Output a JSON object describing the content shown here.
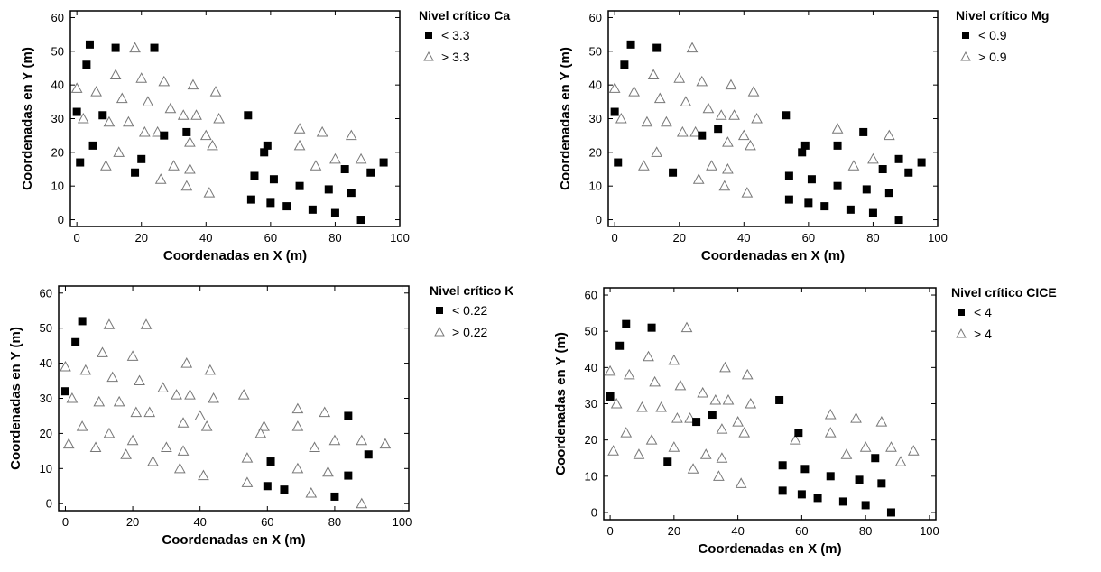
{
  "chart_data": [
    {
      "type": "scatter",
      "legend_title": "Nivel crítico Ca",
      "legend_position": "right",
      "xlabel": "Coordenadas en X (m)",
      "ylabel": "Coordenadas en Y (m)",
      "xlim": [
        -2,
        100
      ],
      "ylim": [
        -2,
        62
      ],
      "xticks": [
        "0",
        "20",
        "40",
        "60",
        "80",
        "100"
      ],
      "yticks": [
        "0",
        "10",
        "20",
        "30",
        "40",
        "50",
        "60"
      ],
      "grid": false,
      "series": [
        {
          "name": "< 3.3",
          "marker": "square",
          "color": "#000000",
          "points": [
            [
              4,
              52
            ],
            [
              12,
              51
            ],
            [
              24,
              51
            ],
            [
              3,
              46
            ],
            [
              0,
              32
            ],
            [
              8,
              31
            ],
            [
              53,
              31
            ],
            [
              34,
              26
            ],
            [
              27,
              25
            ],
            [
              59,
              22
            ],
            [
              58,
              20
            ],
            [
              5,
              22
            ],
            [
              1,
              17
            ],
            [
              20,
              18
            ],
            [
              18,
              14
            ],
            [
              95,
              17
            ],
            [
              83,
              15
            ],
            [
              91,
              14
            ],
            [
              55,
              13
            ],
            [
              61,
              12
            ],
            [
              69,
              10
            ],
            [
              78,
              9
            ],
            [
              85,
              8
            ],
            [
              54,
              6
            ],
            [
              60,
              5
            ],
            [
              65,
              4
            ],
            [
              73,
              3
            ],
            [
              80,
              2
            ],
            [
              88,
              0
            ]
          ]
        },
        {
          "name": "> 3.3",
          "marker": "triangle",
          "color": "#ffffff",
          "points": [
            [
              18,
              51
            ],
            [
              12,
              43
            ],
            [
              20,
              42
            ],
            [
              0,
              39
            ],
            [
              6,
              38
            ],
            [
              14,
              36
            ],
            [
              22,
              35
            ],
            [
              27,
              41
            ],
            [
              36,
              40
            ],
            [
              43,
              38
            ],
            [
              2,
              30
            ],
            [
              10,
              29
            ],
            [
              16,
              29
            ],
            [
              21,
              26
            ],
            [
              25,
              26
            ],
            [
              29,
              33
            ],
            [
              33,
              31
            ],
            [
              37,
              31
            ],
            [
              44,
              30
            ],
            [
              40,
              25
            ],
            [
              35,
              23
            ],
            [
              42,
              22
            ],
            [
              9,
              16
            ],
            [
              13,
              20
            ],
            [
              30,
              16
            ],
            [
              35,
              15
            ],
            [
              26,
              12
            ],
            [
              34,
              10
            ],
            [
              41,
              8
            ],
            [
              69,
              27
            ],
            [
              76,
              26
            ],
            [
              85,
              25
            ],
            [
              69,
              22
            ],
            [
              74,
              16
            ],
            [
              80,
              18
            ],
            [
              88,
              18
            ]
          ]
        }
      ]
    },
    {
      "type": "scatter",
      "legend_title": "Nivel crítico Mg",
      "legend_position": "right",
      "xlabel": "Coordenadas en X (m)",
      "ylabel": "Coordenadas en Y (m)",
      "xlim": [
        -2,
        100
      ],
      "ylim": [
        -2,
        62
      ],
      "xticks": [
        "0",
        "20",
        "40",
        "60",
        "80",
        "100"
      ],
      "yticks": [
        "0",
        "10",
        "20",
        "30",
        "40",
        "50",
        "60"
      ],
      "grid": false,
      "series": [
        {
          "name": "< 0.9",
          "marker": "square",
          "color": "#000000",
          "points": [
            [
              5,
              52
            ],
            [
              13,
              51
            ],
            [
              3,
              46
            ],
            [
              0,
              32
            ],
            [
              53,
              31
            ],
            [
              32,
              27
            ],
            [
              27,
              25
            ],
            [
              77,
              26
            ],
            [
              69,
              22
            ],
            [
              59,
              22
            ],
            [
              58,
              20
            ],
            [
              1,
              17
            ],
            [
              18,
              14
            ],
            [
              95,
              17
            ],
            [
              88,
              18
            ],
            [
              83,
              15
            ],
            [
              91,
              14
            ],
            [
              54,
              13
            ],
            [
              61,
              12
            ],
            [
              69,
              10
            ],
            [
              78,
              9
            ],
            [
              85,
              8
            ],
            [
              54,
              6
            ],
            [
              60,
              5
            ],
            [
              65,
              4
            ],
            [
              73,
              3
            ],
            [
              80,
              2
            ],
            [
              88,
              0
            ]
          ]
        },
        {
          "name": "> 0.9",
          "marker": "triangle",
          "color": "#ffffff",
          "points": [
            [
              24,
              51
            ],
            [
              12,
              43
            ],
            [
              20,
              42
            ],
            [
              0,
              39
            ],
            [
              6,
              38
            ],
            [
              14,
              36
            ],
            [
              22,
              35
            ],
            [
              27,
              41
            ],
            [
              36,
              40
            ],
            [
              43,
              38
            ],
            [
              2,
              30
            ],
            [
              10,
              29
            ],
            [
              16,
              29
            ],
            [
              21,
              26
            ],
            [
              25,
              26
            ],
            [
              29,
              33
            ],
            [
              33,
              31
            ],
            [
              37,
              31
            ],
            [
              44,
              30
            ],
            [
              40,
              25
            ],
            [
              35,
              23
            ],
            [
              42,
              22
            ],
            [
              9,
              16
            ],
            [
              13,
              20
            ],
            [
              30,
              16
            ],
            [
              35,
              15
            ],
            [
              26,
              12
            ],
            [
              34,
              10
            ],
            [
              41,
              8
            ],
            [
              69,
              27
            ],
            [
              85,
              25
            ],
            [
              74,
              16
            ],
            [
              80,
              18
            ]
          ]
        }
      ]
    },
    {
      "type": "scatter",
      "legend_title": "Nivel crítico K",
      "legend_position": "right",
      "xlabel": "Coordenadas en X (m)",
      "ylabel": "Coordenadas en Y (m)",
      "xlim": [
        -2,
        102
      ],
      "ylim": [
        -2,
        62
      ],
      "xticks": [
        "0",
        "20",
        "40",
        "60",
        "80",
        "100"
      ],
      "yticks": [
        "0",
        "10",
        "20",
        "30",
        "40",
        "50",
        "60"
      ],
      "grid": false,
      "series": [
        {
          "name": "< 0.22",
          "marker": "square",
          "color": "#000000",
          "points": [
            [
              5,
              52
            ],
            [
              3,
              46
            ],
            [
              0,
              32
            ],
            [
              84,
              25
            ],
            [
              90,
              14
            ],
            [
              61,
              12
            ],
            [
              84,
              8
            ],
            [
              60,
              5
            ],
            [
              65,
              4
            ],
            [
              80,
              2
            ]
          ]
        },
        {
          "name": "> 0.22",
          "marker": "triangle",
          "color": "#ffffff",
          "points": [
            [
              13,
              51
            ],
            [
              24,
              51
            ],
            [
              11,
              43
            ],
            [
              20,
              42
            ],
            [
              0,
              39
            ],
            [
              6,
              38
            ],
            [
              14,
              36
            ],
            [
              22,
              35
            ],
            [
              36,
              40
            ],
            [
              43,
              38
            ],
            [
              2,
              30
            ],
            [
              10,
              29
            ],
            [
              16,
              29
            ],
            [
              21,
              26
            ],
            [
              25,
              26
            ],
            [
              29,
              33
            ],
            [
              33,
              31
            ],
            [
              37,
              31
            ],
            [
              44,
              30
            ],
            [
              40,
              25
            ],
            [
              35,
              23
            ],
            [
              42,
              22
            ],
            [
              5,
              22
            ],
            [
              1,
              17
            ],
            [
              9,
              16
            ],
            [
              13,
              20
            ],
            [
              20,
              18
            ],
            [
              18,
              14
            ],
            [
              30,
              16
            ],
            [
              35,
              15
            ],
            [
              26,
              12
            ],
            [
              34,
              10
            ],
            [
              41,
              8
            ],
            [
              53,
              31
            ],
            [
              59,
              22
            ],
            [
              58,
              20
            ],
            [
              69,
              27
            ],
            [
              77,
              26
            ],
            [
              69,
              22
            ],
            [
              74,
              16
            ],
            [
              80,
              18
            ],
            [
              88,
              18
            ],
            [
              95,
              17
            ],
            [
              54,
              13
            ],
            [
              69,
              10
            ],
            [
              78,
              9
            ],
            [
              54,
              6
            ],
            [
              73,
              3
            ],
            [
              88,
              0
            ]
          ]
        }
      ]
    },
    {
      "type": "scatter",
      "legend_title": "Nivel crítico CICE",
      "legend_position": "right",
      "xlabel": "Coordenadas en X (m)",
      "ylabel": "Coordenadas en Y (m)",
      "xlim": [
        -2,
        102
      ],
      "ylim": [
        -2,
        62
      ],
      "xticks": [
        "0",
        "20",
        "40",
        "60",
        "80",
        "100"
      ],
      "yticks": [
        "0",
        "10",
        "20",
        "30",
        "40",
        "50",
        "60"
      ],
      "grid": false,
      "series": [
        {
          "name": "< 4",
          "marker": "square",
          "color": "#000000",
          "points": [
            [
              5,
              52
            ],
            [
              13,
              51
            ],
            [
              3,
              46
            ],
            [
              0,
              32
            ],
            [
              53,
              31
            ],
            [
              32,
              27
            ],
            [
              27,
              25
            ],
            [
              59,
              22
            ],
            [
              18,
              14
            ],
            [
              83,
              15
            ],
            [
              54,
              13
            ],
            [
              61,
              12
            ],
            [
              69,
              10
            ],
            [
              78,
              9
            ],
            [
              85,
              8
            ],
            [
              54,
              6
            ],
            [
              60,
              5
            ],
            [
              65,
              4
            ],
            [
              73,
              3
            ],
            [
              80,
              2
            ],
            [
              88,
              0
            ]
          ]
        },
        {
          "name": "> 4",
          "marker": "triangle",
          "color": "#ffffff",
          "points": [
            [
              24,
              51
            ],
            [
              12,
              43
            ],
            [
              20,
              42
            ],
            [
              0,
              39
            ],
            [
              6,
              38
            ],
            [
              14,
              36
            ],
            [
              22,
              35
            ],
            [
              36,
              40
            ],
            [
              43,
              38
            ],
            [
              2,
              30
            ],
            [
              10,
              29
            ],
            [
              16,
              29
            ],
            [
              21,
              26
            ],
            [
              25,
              26
            ],
            [
              29,
              33
            ],
            [
              33,
              31
            ],
            [
              37,
              31
            ],
            [
              44,
              30
            ],
            [
              40,
              25
            ],
            [
              35,
              23
            ],
            [
              42,
              22
            ],
            [
              5,
              22
            ],
            [
              1,
              17
            ],
            [
              9,
              16
            ],
            [
              13,
              20
            ],
            [
              20,
              18
            ],
            [
              30,
              16
            ],
            [
              35,
              15
            ],
            [
              26,
              12
            ],
            [
              34,
              10
            ],
            [
              41,
              8
            ],
            [
              58,
              20
            ],
            [
              69,
              27
            ],
            [
              77,
              26
            ],
            [
              85,
              25
            ],
            [
              69,
              22
            ],
            [
              74,
              16
            ],
            [
              80,
              18
            ],
            [
              88,
              18
            ],
            [
              95,
              17
            ],
            [
              91,
              14
            ]
          ]
        }
      ]
    }
  ]
}
